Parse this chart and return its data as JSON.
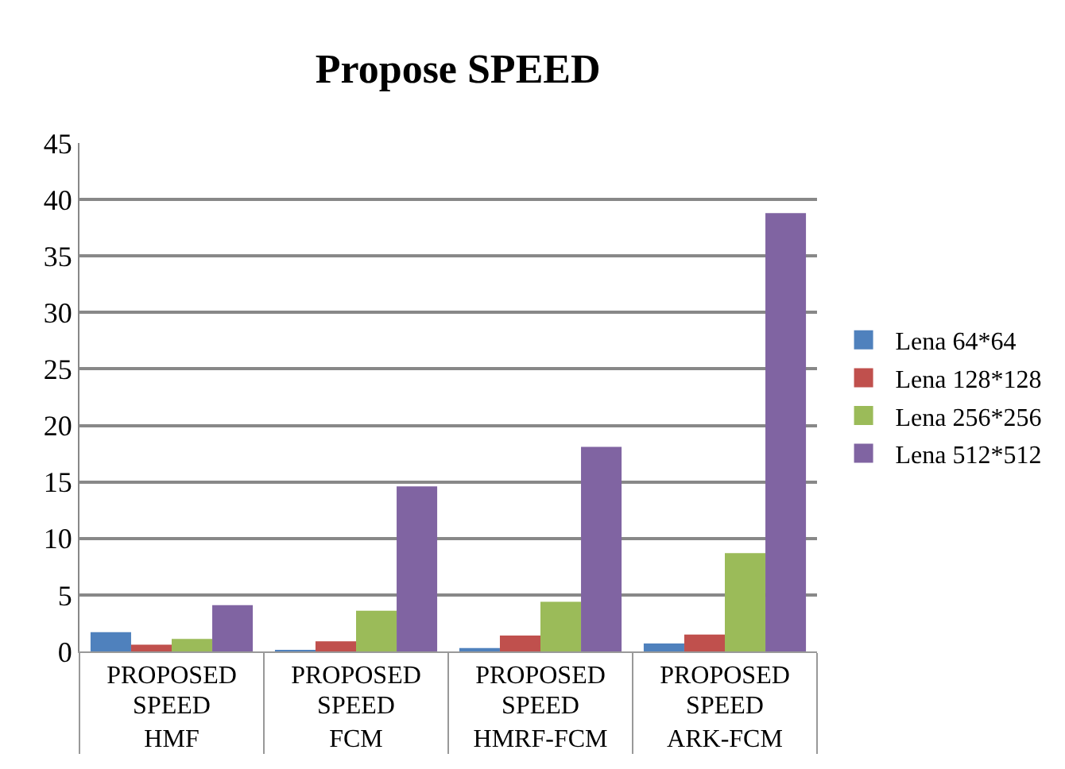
{
  "chart_data": {
    "type": "bar",
    "title": "Propose SPEED",
    "categories": [
      "PROPOSED\nSPEED\nHMF",
      "PROPOSED\nSPEED\nFCM",
      "PROPOSED\nSPEED\nHMRF-FCM",
      "PROPOSED\nSPEED\nARK-FCM"
    ],
    "series": [
      {
        "name": "Lena 64*64",
        "color": "#4f81bd",
        "values": [
          1.7,
          0.1,
          0.3,
          0.7
        ]
      },
      {
        "name": "Lena 128*128",
        "color": "#c0504d",
        "values": [
          0.6,
          0.9,
          1.4,
          1.5
        ]
      },
      {
        "name": "Lena 256*256",
        "color": "#9bbb59",
        "values": [
          1.1,
          3.6,
          4.4,
          8.7
        ]
      },
      {
        "name": "Lena 512*512",
        "color": "#8064a2",
        "values": [
          4.1,
          14.6,
          18.1,
          38.8
        ]
      }
    ],
    "ylim": [
      0,
      45
    ],
    "yticks": [
      0,
      5,
      10,
      15,
      20,
      25,
      30,
      35,
      40,
      45
    ],
    "grid": "y",
    "legend": "right"
  }
}
